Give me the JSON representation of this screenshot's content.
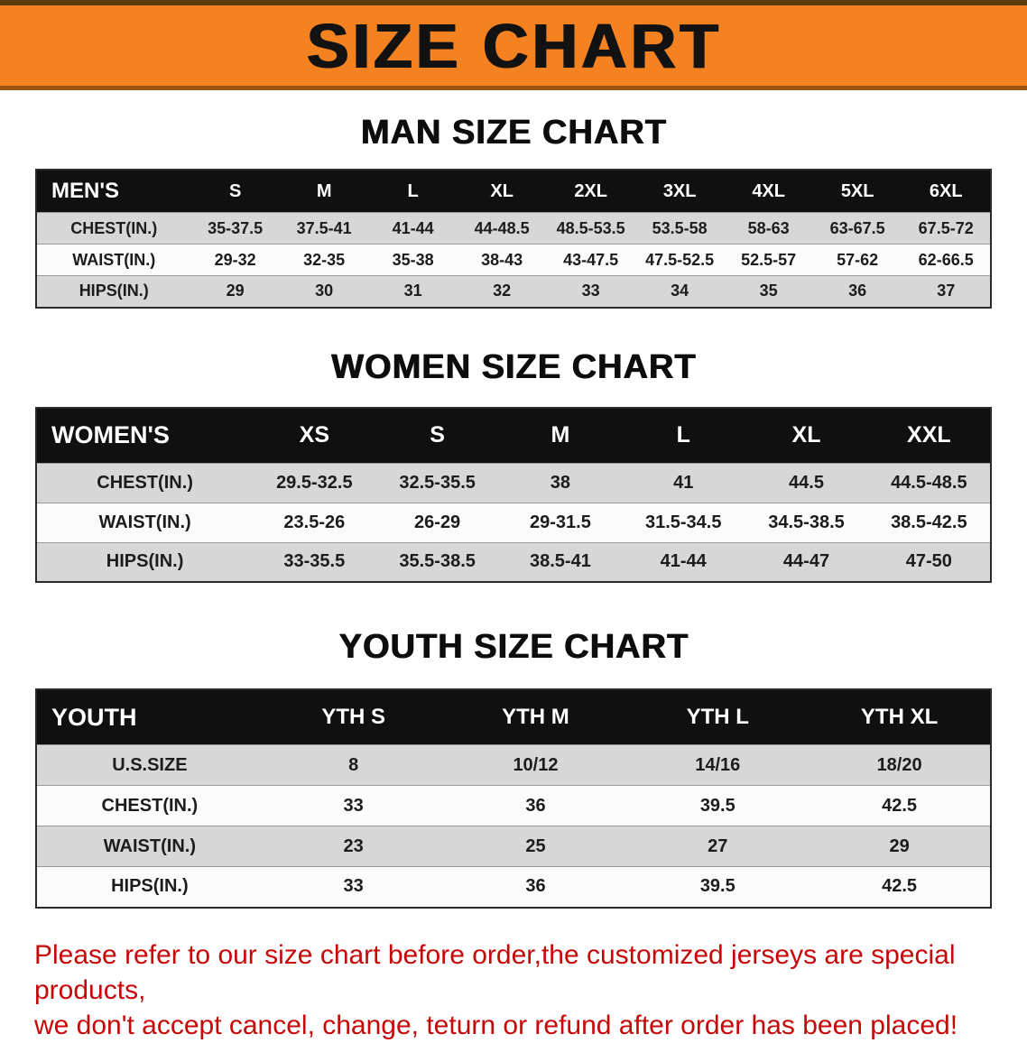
{
  "banner": {
    "title": "SIZE CHART",
    "bg_color": "#F58220",
    "text_color": "#121212"
  },
  "sections": [
    {
      "id": "men",
      "heading": "MAN SIZE CHART",
      "table": {
        "header": [
          "MEN'S",
          "S",
          "M",
          "L",
          "XL",
          "2XL",
          "3XL",
          "4XL",
          "5XL",
          "6XL"
        ],
        "rows": [
          [
            "CHEST(IN.)",
            "35-37.5",
            "37.5-41",
            "41-44",
            "44-48.5",
            "48.5-53.5",
            "53.5-58",
            "58-63",
            "63-67.5",
            "67.5-72"
          ],
          [
            "WAIST(IN.)",
            "29-32",
            "32-35",
            "35-38",
            "38-43",
            "43-47.5",
            "47.5-52.5",
            "52.5-57",
            "57-62",
            "62-66.5"
          ],
          [
            "HIPS(IN.)",
            "29",
            "30",
            "31",
            "32",
            "33",
            "34",
            "35",
            "36",
            "37"
          ]
        ]
      }
    },
    {
      "id": "women",
      "heading": "WOMEN SIZE CHART",
      "table": {
        "header": [
          "WOMEN'S",
          "XS",
          "S",
          "M",
          "L",
          "XL",
          "XXL"
        ],
        "rows": [
          [
            "CHEST(IN.)",
            "29.5-32.5",
            "32.5-35.5",
            "38",
            "41",
            "44.5",
            "44.5-48.5"
          ],
          [
            "WAIST(IN.)",
            "23.5-26",
            "26-29",
            "29-31.5",
            "31.5-34.5",
            "34.5-38.5",
            "38.5-42.5"
          ],
          [
            "HIPS(IN.)",
            "33-35.5",
            "35.5-38.5",
            "38.5-41",
            "41-44",
            "44-47",
            "47-50"
          ]
        ]
      }
    },
    {
      "id": "youth",
      "heading": "YOUTH SIZE CHART",
      "table": {
        "header": [
          "YOUTH",
          "YTH S",
          "YTH M",
          "YTH L",
          "YTH XL"
        ],
        "rows": [
          [
            "U.S.SIZE",
            "8",
            "10/12",
            "14/16",
            "18/20"
          ],
          [
            "CHEST(IN.)",
            "33",
            "36",
            "39.5",
            "42.5"
          ],
          [
            "WAIST(IN.)",
            "23",
            "25",
            "27",
            "29"
          ],
          [
            "HIPS(IN.)",
            "33",
            "36",
            "39.5",
            "42.5"
          ]
        ]
      }
    }
  ],
  "footer": {
    "line1": "Please refer to our size chart before order,the customized jerseys are special products,",
    "line2": "we don't accept cancel, change, teturn or refund after order has been placed!",
    "text_color": "#c50808"
  },
  "colors": {
    "banner_bg": "#F58220",
    "table_header_bg": "#101010",
    "row_stripe": "#d7d7d7",
    "footer_text": "#c50808"
  }
}
